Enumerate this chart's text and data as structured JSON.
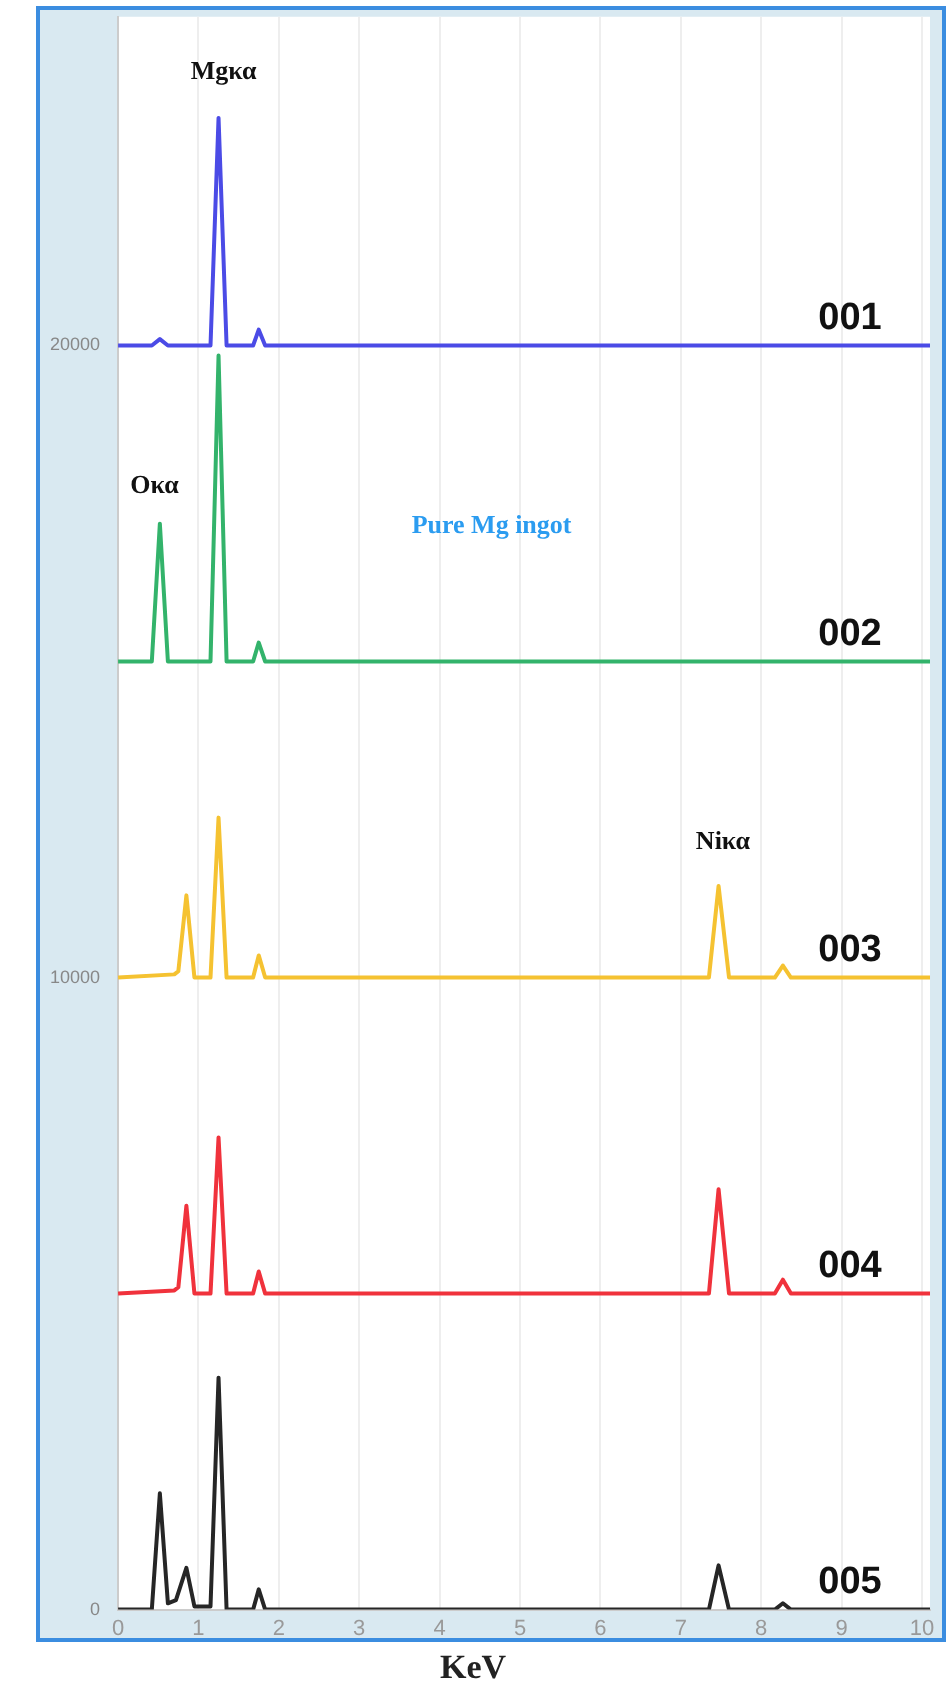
{
  "chart_data": {
    "type": "line",
    "xlabel": "KeV",
    "xlim": [
      0,
      10.1
    ],
    "xticks": [
      0,
      1,
      2,
      3,
      4,
      5,
      6,
      7,
      8,
      9,
      10
    ],
    "ylim": [
      0,
      25200
    ],
    "yticks": [
      0,
      10000,
      20000
    ],
    "grid": "x",
    "legend": false,
    "marker": "none",
    "line_style": "solid",
    "annotations": [
      "Mgκα",
      "Oκα",
      "Niκα",
      "Pure Mg ingot"
    ],
    "series": [
      {
        "name": "001",
        "color": "#4b4be6",
        "x": [
          0,
          0.42,
          0.52,
          0.62,
          1.15,
          1.25,
          1.35,
          1.68,
          1.75,
          1.83,
          10.1
        ],
        "values": [
          20000,
          20000,
          20100,
          20000,
          20000,
          23600,
          20000,
          20000,
          20250,
          20000,
          20000
        ]
      },
      {
        "name": "002",
        "color": "#33b36b",
        "x": [
          0,
          0.42,
          0.52,
          0.62,
          1.15,
          1.25,
          1.35,
          1.68,
          1.75,
          1.83,
          10.1
        ],
        "values": [
          15000,
          15000,
          17180,
          15000,
          15000,
          19840,
          15000,
          15000,
          15300,
          15000,
          15000
        ]
      },
      {
        "name": "003",
        "color": "#f5c231",
        "x": [
          0,
          0.7,
          0.75,
          0.85,
          0.95,
          1.15,
          1.25,
          1.35,
          1.68,
          1.75,
          1.83,
          7.35,
          7.47,
          7.6,
          8.17,
          8.27,
          8.37,
          10.1
        ],
        "values": [
          10000,
          10050,
          10100,
          11300,
          10000,
          10000,
          12530,
          10000,
          10000,
          10350,
          10000,
          10000,
          11450,
          10000,
          10000,
          10190,
          10000,
          10000
        ]
      },
      {
        "name": "004",
        "color": "#f0323c",
        "x": [
          0,
          0.7,
          0.75,
          0.85,
          0.95,
          1.15,
          1.25,
          1.35,
          1.68,
          1.75,
          1.83,
          7.35,
          7.47,
          7.6,
          8.17,
          8.27,
          8.37,
          10.1
        ],
        "values": [
          5000,
          5050,
          5100,
          6390,
          5000,
          5000,
          7470,
          5000,
          5000,
          5350,
          5000,
          5000,
          6650,
          5000,
          5000,
          5220,
          5000,
          5000
        ]
      },
      {
        "name": "005",
        "color": "#262626",
        "x": [
          0,
          0.42,
          0.52,
          0.62,
          0.72,
          0.85,
          0.95,
          1.15,
          1.25,
          1.35,
          1.68,
          1.75,
          1.83,
          7.35,
          7.47,
          7.6,
          8.17,
          8.27,
          8.37,
          10.1
        ],
        "values": [
          0,
          0,
          1840,
          100,
          150,
          660,
          50,
          50,
          3670,
          0,
          0,
          320,
          0,
          0,
          700,
          0,
          0,
          100,
          0,
          0
        ]
      }
    ]
  }
}
